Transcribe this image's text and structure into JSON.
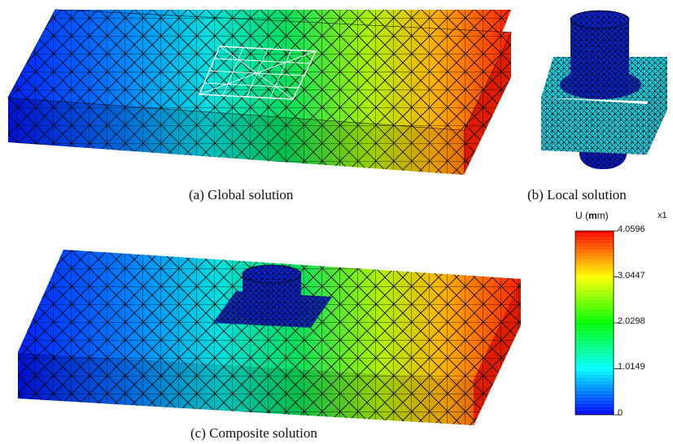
{
  "captions": {
    "global": "(a) Global solution",
    "local": "(b) Local solution",
    "composite": "(c) Composite solution"
  },
  "colorbar": {
    "title_prefix": "U (",
    "title_unit": "m",
    "title_suffix": "m)",
    "multiplier": "x1",
    "ticks": [
      "4.0596",
      "3.0447",
      "2.0298",
      "1.0149",
      "0"
    ],
    "colors": [
      "#0000ff",
      "#00ffff",
      "#00ff00",
      "#ffff00",
      "#ff0000"
    ]
  },
  "palette": {
    "mesh_line": "#000000",
    "highlight_line": "#ffffff"
  }
}
